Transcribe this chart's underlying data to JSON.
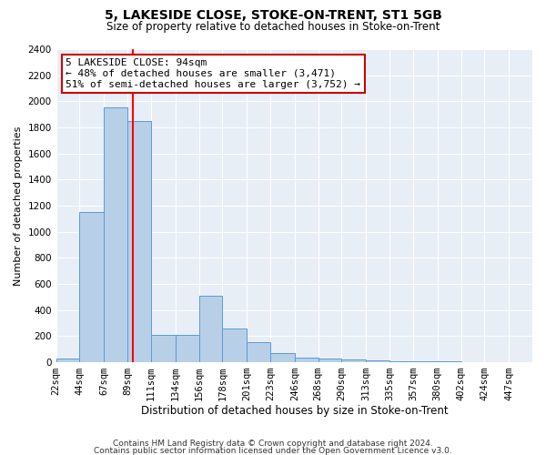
{
  "title": "5, LAKESIDE CLOSE, STOKE-ON-TRENT, ST1 5GB",
  "subtitle": "Size of property relative to detached houses in Stoke-on-Trent",
  "xlabel": "Distribution of detached houses by size in Stoke-on-Trent",
  "ylabel": "Number of detached properties",
  "bin_edges": [
    22,
    44,
    67,
    89,
    111,
    134,
    156,
    178,
    201,
    223,
    246,
    268,
    290,
    313,
    335,
    357,
    380,
    402,
    424,
    447,
    469
  ],
  "bar_heights": [
    25,
    1150,
    1950,
    1850,
    210,
    210,
    510,
    260,
    150,
    70,
    35,
    30,
    20,
    15,
    10,
    8,
    5,
    3,
    2,
    2
  ],
  "bar_color": "#b8cfe8",
  "bar_edge_color": "#5b9bd5",
  "red_line_x": 94,
  "annotation_title": "5 LAKESIDE CLOSE: 94sqm",
  "annotation_line2": "← 48% of detached houses are smaller (3,471)",
  "annotation_line3": "51% of semi-detached houses are larger (3,752) →",
  "annotation_box_facecolor": "#ffffff",
  "annotation_box_edgecolor": "#cc0000",
  "footer_line1": "Contains HM Land Registry data © Crown copyright and database right 2024.",
  "footer_line2": "Contains public sector information licensed under the Open Government Licence v3.0.",
  "ylim": [
    0,
    2400
  ],
  "yticks": [
    0,
    200,
    400,
    600,
    800,
    1000,
    1200,
    1400,
    1600,
    1800,
    2000,
    2200,
    2400
  ],
  "background_color": "#e8eef5",
  "grid_color": "#ffffff",
  "title_fontsize": 10,
  "subtitle_fontsize": 8.5,
  "xlabel_fontsize": 8.5,
  "ylabel_fontsize": 8,
  "tick_fontsize": 7.5,
  "annotation_fontsize": 8,
  "footer_fontsize": 6.5
}
